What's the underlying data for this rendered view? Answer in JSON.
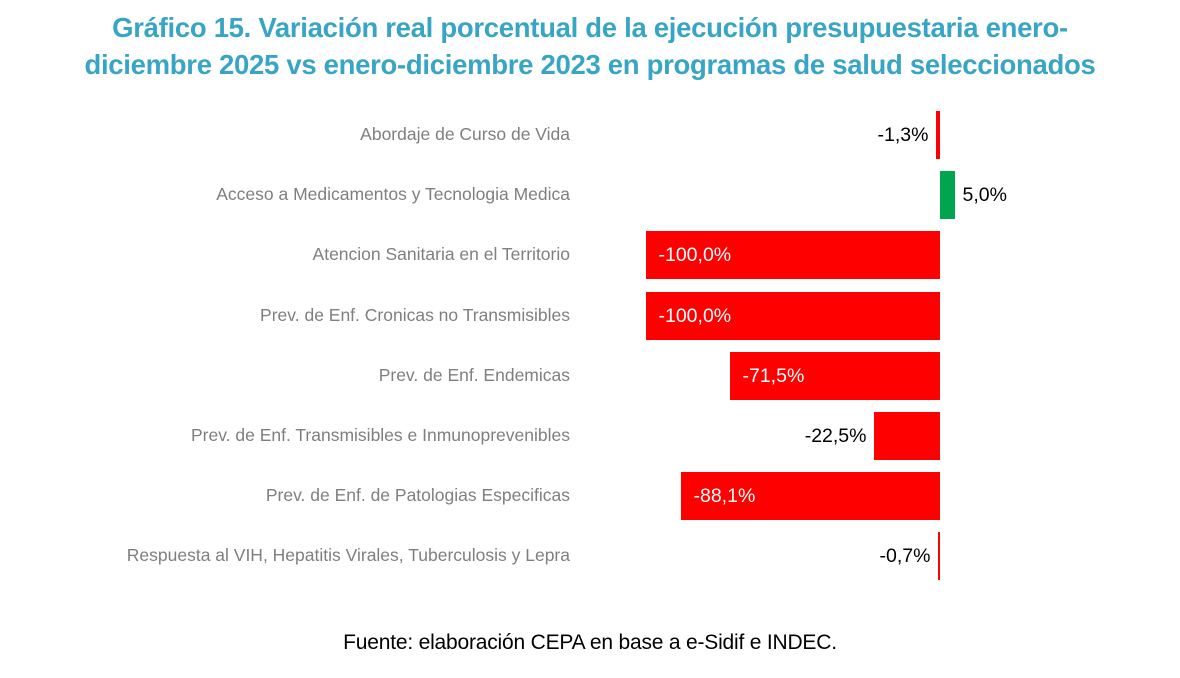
{
  "title": "Gráfico 15. Variación real porcentual de la ejecución presupuestaria enero-diciembre 2025 vs enero-diciembre 2023 en programas de salud seleccionados",
  "title_lines": [
    "Gráfico 15. Variación real porcentual de la ejecución presupuestaria enero-",
    "diciembre 2025 vs enero-diciembre 2023 en programas de salud seleccionados"
  ],
  "footer": "Fuente: elaboración CEPA en base a e-Sidif e INDEC.",
  "colors": {
    "title": "#39a5c6",
    "negative_bar": "#ff0000",
    "positive_bar": "#00a550",
    "category_label": "#7f7f7f",
    "value_label_inside": "#ffffff",
    "value_label_outside": "#000000"
  },
  "chart_data": {
    "type": "bar",
    "orientation": "horizontal",
    "title": "Gráfico 15. Variación real porcentual de la ejecución presupuestaria enero-diciembre 2025 vs enero-diciembre 2023 en programas de salud seleccionados",
    "xlabel": "",
    "ylabel": "",
    "xlim": [
      -105,
      10
    ],
    "grid": false,
    "legend": null,
    "value_format": "percent-comma-decimal",
    "categories": [
      "Abordaje de Curso de Vida",
      "Acceso a Medicamentos y Tecnologia Medica",
      "Atencion Sanitaria en el Territorio",
      "Prev. de Enf. Cronicas no Transmisibles",
      "Prev. de Enf. Endemicas",
      "Prev. de Enf. Transmisibles e Inmunoprevenibles",
      "Prev. de Enf. de Patologias Especificas",
      "Respuesta al VIH, Hepatitis Virales, Tuberculosis y Lepra"
    ],
    "values": [
      -1.3,
      5.0,
      -100.0,
      -100.0,
      -71.5,
      -22.5,
      -88.1,
      -0.7
    ],
    "value_labels": [
      "-1,3%",
      "5,0%",
      "-100,0%",
      "-100,0%",
      "-71,5%",
      "-22,5%",
      "-88,1%",
      "-0,7%"
    ],
    "label_positions": [
      "outside-left",
      "outside-right",
      "inside",
      "inside",
      "inside",
      "outside-left",
      "inside",
      "outside-left"
    ]
  }
}
